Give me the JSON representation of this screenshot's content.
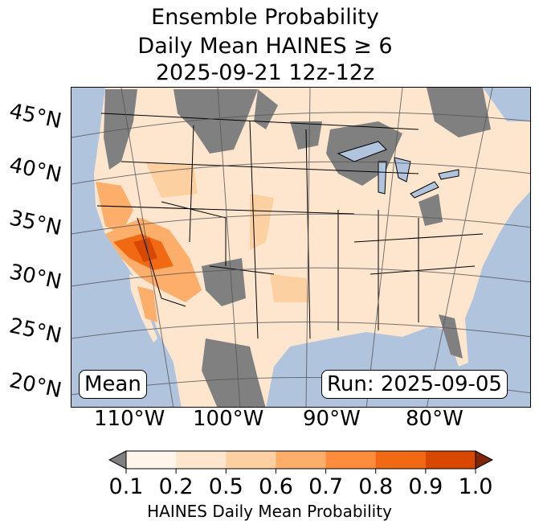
{
  "title": {
    "line1": "Ensemble Probability",
    "line2": "Daily Mean HAINES ≥ 6",
    "line3": "2025-09-21 12z-12z"
  },
  "map": {
    "lat_labels": [
      "45°N",
      "40°N",
      "35°N",
      "30°N",
      "25°N",
      "20°N"
    ],
    "lon_labels": [
      "110°W",
      "100°W",
      "90°W",
      "80°W"
    ],
    "left_box": "Mean",
    "right_box": "Run: 2025-09-05",
    "colors": {
      "ocean": "#b0c4de",
      "missing": "#808080"
    }
  },
  "colorbar": {
    "ticks": [
      "0.1",
      "0.2",
      "0.5",
      "0.6",
      "0.7",
      "0.8",
      "0.9",
      "1.0"
    ],
    "colors": [
      "#fff5eb",
      "#fee6ce",
      "#fdd0a2",
      "#fdae6b",
      "#fd8d3c",
      "#f16913",
      "#d94801"
    ],
    "under_color": "#808080",
    "over_color": "#7f2704",
    "label": "HAINES Daily Mean Probability"
  }
}
